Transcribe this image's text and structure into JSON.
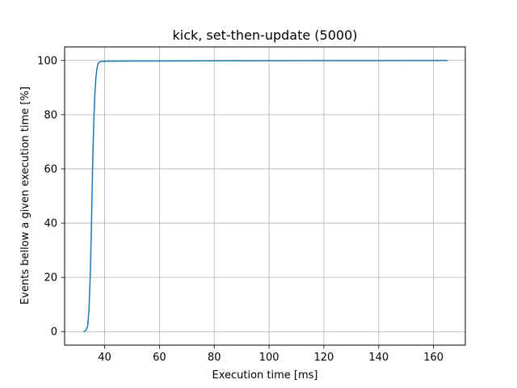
{
  "chart_data": {
    "type": "line",
    "title": "kick, set-then-update (5000)",
    "xlabel": "Execution time [ms]",
    "ylabel": "Events bellow a given execution time [%]",
    "xlim": [
      25.4,
      171.6
    ],
    "ylim": [
      -5,
      105
    ],
    "xticks": [
      40,
      60,
      80,
      100,
      120,
      140,
      160
    ],
    "yticks": [
      0,
      20,
      40,
      60,
      80,
      100
    ],
    "grid": true,
    "series": [
      {
        "color": "#1f77b4",
        "x": [
          32.5,
          33.2,
          33.8,
          34.3,
          34.8,
          35.2,
          35.6,
          36.0,
          36.4,
          36.8,
          37.2,
          37.6,
          38.0,
          38.6,
          39.5,
          41,
          45,
          50,
          60,
          80,
          100,
          120,
          140,
          160,
          165
        ],
        "y": [
          0,
          0.5,
          2,
          8,
          22,
          40,
          60,
          76,
          87,
          93.5,
          97,
          98.8,
          99.4,
          99.6,
          99.65,
          99.7,
          99.75,
          99.8,
          99.8,
          99.85,
          99.9,
          99.92,
          99.95,
          99.98,
          100
        ]
      }
    ]
  }
}
